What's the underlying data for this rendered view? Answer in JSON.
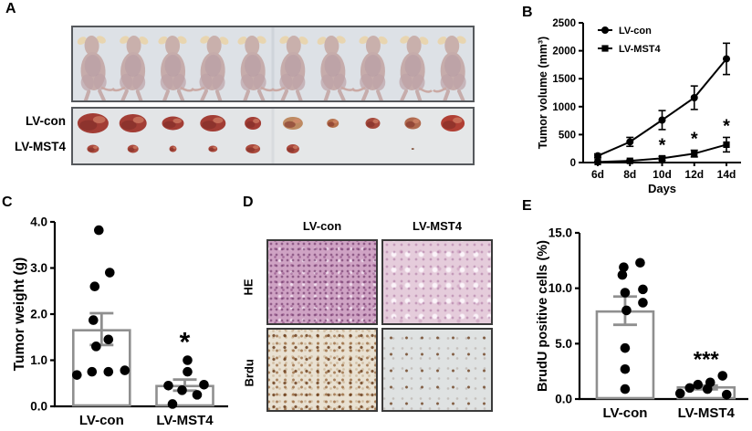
{
  "panels": {
    "a": "A",
    "b": "B",
    "c": "C",
    "d": "D",
    "e": "E"
  },
  "panel_a": {
    "row_labels": [
      "LV-con",
      "LV-MST4"
    ],
    "mice_count": 10,
    "tumor_sizes_lv_con": [
      [
        34,
        22
      ],
      [
        30,
        20
      ],
      [
        24,
        15
      ],
      [
        28,
        18
      ],
      [
        18,
        14
      ],
      [
        22,
        14
      ],
      [
        13,
        10
      ],
      [
        16,
        12
      ],
      [
        18,
        13
      ],
      [
        26,
        18
      ]
    ],
    "tumor_sizes_lv_mst4": [
      [
        13,
        9
      ],
      [
        12,
        9
      ],
      [
        8,
        7
      ],
      [
        10,
        7
      ],
      [
        16,
        10
      ],
      [
        14,
        10
      ],
      [
        0,
        0
      ],
      [
        0,
        0
      ],
      [
        3,
        2
      ],
      [
        0,
        0
      ]
    ],
    "colors": {
      "mouse_body": "#c6acab",
      "mouse_ear": "#e8d5b0",
      "tumor_dark": "#a23d35",
      "tumor_light": [
        "#bd8a62",
        "#b5714c",
        "#a54a3c",
        "#b06a4f",
        "#b03f34"
      ],
      "tumor_small": "#aa4a3d",
      "tumor_inner": "#7c2b26"
    }
  },
  "panel_d": {
    "col_labels": [
      "LV-con",
      "LV-MST4"
    ],
    "row_labels": [
      "HE",
      "Brdu"
    ]
  },
  "chart_data": [
    {
      "id": "tumor-volume",
      "type": "line",
      "title": "",
      "xlabel": "Days",
      "ylabel": "Tumor volume (mm³)",
      "categories": [
        "6d",
        "8d",
        "10d",
        "12d",
        "14d"
      ],
      "ylim": [
        0,
        2500
      ],
      "yticks": [
        0,
        500,
        1000,
        1500,
        2000,
        2500
      ],
      "legend_position": "top-left",
      "grid": false,
      "series": [
        {
          "name": "LV-con",
          "marker": "circle",
          "values": [
            120,
            370,
            760,
            1160,
            1855
          ],
          "errors": [
            35,
            80,
            170,
            210,
            280
          ]
        },
        {
          "name": "LV-MST4",
          "marker": "square",
          "values": [
            10,
            30,
            75,
            160,
            320
          ],
          "errors": [
            8,
            15,
            35,
            60,
            130
          ]
        }
      ],
      "annotations": [
        {
          "series": 1,
          "cat": 2,
          "label": "*"
        },
        {
          "series": 1,
          "cat": 3,
          "label": "*"
        },
        {
          "series": 1,
          "cat": 4,
          "label": "*"
        }
      ]
    },
    {
      "id": "tumor-weight",
      "type": "scatter-bar",
      "title": "",
      "xlabel": "",
      "ylabel": "Tumor weight (g)",
      "categories": [
        "LV-con",
        "LV-MST4"
      ],
      "ylim": [
        0,
        4
      ],
      "yticks": [
        "0.0",
        "1.0",
        "2.0",
        "3.0",
        "4.0"
      ],
      "grid": false,
      "groups": [
        {
          "name": "LV-con",
          "mean": 1.65,
          "sem_low": 1.33,
          "sem_high": 2.02,
          "sig": "",
          "points": [
            [
              3.82,
              -0.1
            ],
            [
              2.9,
              0.3
            ],
            [
              2.6,
              -0.25
            ],
            [
              1.87,
              -0.3
            ],
            [
              1.45,
              0.25
            ],
            [
              1.3,
              -0.2
            ],
            [
              0.75,
              -0.35
            ],
            [
              0.75,
              0.25
            ],
            [
              0.78,
              0.85
            ],
            [
              0.68,
              -0.9
            ]
          ]
        },
        {
          "name": "LV-MST4",
          "mean": 0.44,
          "sem_low": 0.34,
          "sem_high": 0.58,
          "sig": "*",
          "points": [
            [
              1.0,
              0.1
            ],
            [
              0.75,
              0.1
            ],
            [
              0.47,
              0.7
            ],
            [
              0.45,
              -0.6
            ],
            [
              0.35,
              -0.1
            ],
            [
              0.25,
              0.45
            ],
            [
              0.05,
              -0.45
            ]
          ]
        }
      ]
    },
    {
      "id": "brudu-positive",
      "type": "scatter-bar",
      "title": "",
      "xlabel": "",
      "ylabel": "BrudU positive cells (%)",
      "categories": [
        "LV-con",
        "LV-MST4"
      ],
      "ylim": [
        0,
        15
      ],
      "yticks": [
        "0.0",
        "5.0",
        "10.0",
        "15.0"
      ],
      "grid": false,
      "groups": [
        {
          "name": "LV-con",
          "mean": 7.9,
          "sem_low": 6.7,
          "sem_high": 9.25,
          "sig": "",
          "points": [
            [
              12.3,
              0.55
            ],
            [
              11.9,
              -0.05
            ],
            [
              11.2,
              -0.1
            ],
            [
              9.9,
              0.65
            ],
            [
              9.6,
              0.0
            ],
            [
              8.7,
              0.65
            ],
            [
              8.0,
              0.05
            ],
            [
              4.6,
              0.0
            ],
            [
              2.7,
              0.0
            ],
            [
              0.9,
              0.0
            ]
          ]
        },
        {
          "name": "LV-MST4",
          "mean": 1.05,
          "sem_low": 0.88,
          "sem_high": 1.22,
          "sig": "***",
          "points": [
            [
              2.1,
              0.6
            ],
            [
              1.5,
              0.15
            ],
            [
              1.3,
              -0.3
            ],
            [
              1.0,
              -0.6
            ],
            [
              0.9,
              0.05
            ],
            [
              0.5,
              -0.95
            ],
            [
              0.4,
              0.75
            ]
          ]
        }
      ]
    }
  ]
}
